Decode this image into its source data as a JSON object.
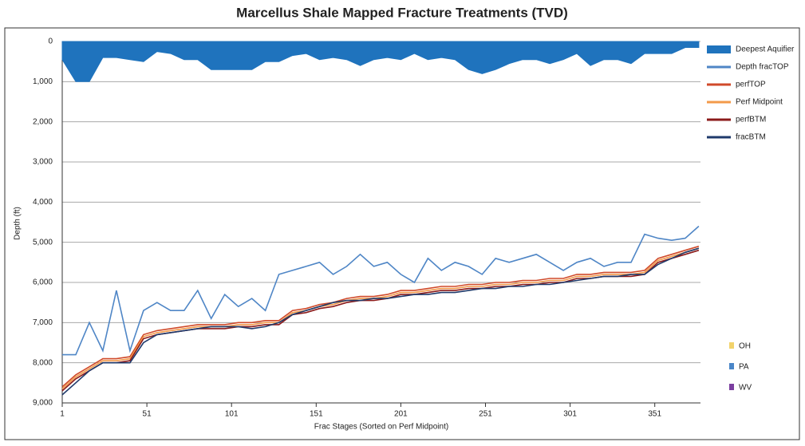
{
  "chart_data": {
    "type": "line",
    "title": "Marcellus Shale Mapped Fracture Treatments (TVD)",
    "x_label": "Frac Stages (Sorted on Perf Midpoint)",
    "y_label": "Depth (ft)",
    "x": [
      1,
      9,
      17,
      25,
      33,
      41,
      49,
      57,
      65,
      73,
      81,
      89,
      97,
      105,
      113,
      121,
      129,
      137,
      145,
      153,
      161,
      169,
      177,
      185,
      193,
      201,
      209,
      217,
      225,
      233,
      241,
      249,
      257,
      265,
      273,
      281,
      289,
      297,
      305,
      313,
      321,
      329,
      337,
      345,
      353,
      361,
      369,
      377
    ],
    "xlim": [
      1,
      378
    ],
    "xticks": [
      1,
      51,
      101,
      151,
      201,
      251,
      301,
      351
    ],
    "ylim": [
      0,
      9000
    ],
    "y_inverted": true,
    "yticks": [
      0,
      {
        "value": 1000,
        "label": "1,000"
      },
      {
        "value": 2000,
        "label": "2,000"
      },
      {
        "value": 3000,
        "label": "3,000"
      },
      {
        "value": 4000,
        "label": "4,000"
      },
      {
        "value": 5000,
        "label": "5,000"
      },
      {
        "value": 6000,
        "label": "6,000"
      },
      {
        "value": 7000,
        "label": "7,000"
      },
      {
        "value": 8000,
        "label": "8,000"
      },
      {
        "value": 9000,
        "label": "9,000"
      }
    ],
    "grid": true,
    "series": [
      {
        "name": "Deepest Aquifier",
        "color": "#1f73bd",
        "style": "area",
        "values": [
          450,
          1000,
          1000,
          400,
          400,
          450,
          500,
          250,
          300,
          450,
          450,
          700,
          700,
          700,
          700,
          500,
          500,
          350,
          300,
          450,
          400,
          450,
          600,
          450,
          400,
          450,
          300,
          450,
          400,
          450,
          700,
          800,
          700,
          550,
          450,
          450,
          550,
          450,
          300,
          600,
          450,
          450,
          550,
          300,
          300,
          300,
          150,
          150
        ]
      },
      {
        "name": "Depth fracTOP",
        "color": "#4f86c6",
        "values": [
          7800,
          7800,
          7000,
          7700,
          6200,
          7700,
          6700,
          6500,
          6700,
          6700,
          6200,
          6900,
          6300,
          6600,
          6400,
          6700,
          5800,
          5700,
          5600,
          5500,
          5800,
          5600,
          5300,
          5600,
          5500,
          5800,
          6000,
          5400,
          5700,
          5500,
          5600,
          5800,
          5400,
          5500,
          5400,
          5300,
          5500,
          5700,
          5500,
          5400,
          5600,
          5500,
          5500,
          4800,
          4900,
          4950,
          4900,
          4600
        ]
      },
      {
        "name": "perfTOP",
        "color": "#d04a2a",
        "values": [
          8600,
          8300,
          8100,
          7900,
          7900,
          7850,
          7300,
          7200,
          7150,
          7100,
          7050,
          7050,
          7050,
          7000,
          7000,
          6950,
          6950,
          6700,
          6650,
          6550,
          6500,
          6400,
          6350,
          6350,
          6300,
          6200,
          6200,
          6150,
          6100,
          6100,
          6050,
          6050,
          6000,
          6000,
          5950,
          5950,
          5900,
          5900,
          5800,
          5800,
          5750,
          5750,
          5750,
          5700,
          5400,
          5300,
          5200,
          5100
        ]
      },
      {
        "name": "Perf Midpoint",
        "color": "#f39a4a",
        "values": [
          8650,
          8350,
          8150,
          7950,
          7950,
          7900,
          7350,
          7250,
          7200,
          7150,
          7100,
          7100,
          7100,
          7050,
          7050,
          7000,
          7000,
          6750,
          6700,
          6600,
          6550,
          6450,
          6400,
          6400,
          6350,
          6250,
          6250,
          6200,
          6150,
          6150,
          6100,
          6100,
          6050,
          6050,
          6000,
          6000,
          5950,
          5950,
          5850,
          5850,
          5800,
          5800,
          5800,
          5750,
          5450,
          5350,
          5250,
          5150
        ]
      },
      {
        "name": "perfBTM",
        "color": "#8b1a1a",
        "values": [
          8700,
          8400,
          8200,
          8000,
          8000,
          7950,
          7400,
          7300,
          7250,
          7200,
          7150,
          7150,
          7150,
          7100,
          7100,
          7050,
          7050,
          6800,
          6750,
          6650,
          6600,
          6500,
          6450,
          6450,
          6400,
          6300,
          6300,
          6250,
          6200,
          6200,
          6150,
          6150,
          6100,
          6100,
          6050,
          6050,
          6000,
          6000,
          5900,
          5900,
          5850,
          5850,
          5850,
          5800,
          5500,
          5400,
          5300,
          5200
        ]
      },
      {
        "name": "fracBTM",
        "color": "#1f3a6b",
        "values": [
          8800,
          8500,
          8200,
          8000,
          8000,
          8000,
          7500,
          7300,
          7250,
          7200,
          7150,
          7100,
          7100,
          7100,
          7150,
          7100,
          7000,
          6800,
          6700,
          6600,
          6500,
          6450,
          6450,
          6400,
          6400,
          6350,
          6300,
          6300,
          6250,
          6250,
          6200,
          6150,
          6150,
          6100,
          6100,
          6050,
          6050,
          6000,
          5950,
          5900,
          5850,
          5850,
          5800,
          5800,
          5550,
          5400,
          5250,
          5150
        ]
      }
    ],
    "state_legend": [
      {
        "name": "OH",
        "color": "#f2d36b"
      },
      {
        "name": "PA",
        "color": "#4a86c8"
      },
      {
        "name": "WV",
        "color": "#7b3fa0"
      }
    ]
  }
}
